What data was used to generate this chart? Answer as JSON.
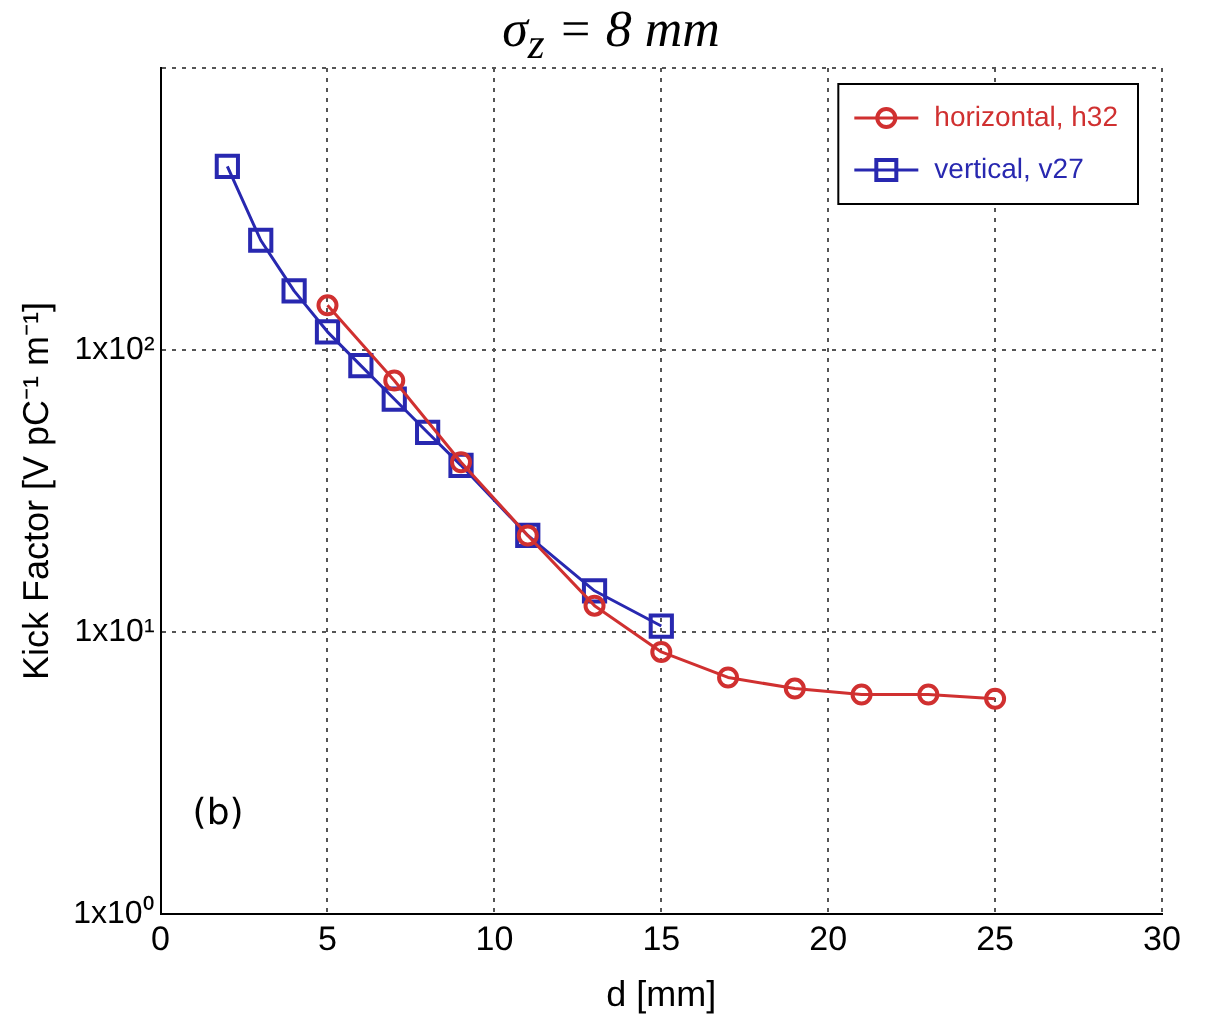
{
  "chart_data": {
    "type": "line",
    "title": "σ$_{z}$ = 8 mm",
    "xlabel": "d [mm]",
    "ylabel": "Kick Factor [V pC⁻¹ m⁻¹]",
    "annotations": [
      "(b)"
    ],
    "xlim": [
      0,
      30
    ],
    "xticks": [
      0,
      5,
      10,
      15,
      20,
      25,
      30
    ],
    "ylim": [
      1,
      1000
    ],
    "yticks": [
      {
        "value": 1,
        "label": "1x10⁰"
      },
      {
        "value": 10,
        "label": "1x10¹"
      },
      {
        "value": 100,
        "label": "1x10²"
      },
      {
        "value": 1000,
        "label": null
      }
    ],
    "log": "y",
    "grid": true,
    "legend": "top right",
    "line_style": "solid",
    "series": [
      {
        "name": "horizontal, h32",
        "color": "#d03030",
        "marker": "circle",
        "x": [
          5,
          7,
          9,
          11,
          13,
          15,
          17,
          19,
          21,
          23,
          25
        ],
        "values": [
          144,
          78,
          40,
          22,
          12.4,
          8.5,
          6.9,
          6.3,
          6.0,
          6.0,
          5.8
        ]
      },
      {
        "name": "vertical, v27",
        "color": "#2828b0",
        "marker": "square",
        "x": [
          2,
          3,
          4,
          5,
          6,
          7,
          8,
          9,
          11,
          13,
          15
        ],
        "values": [
          448,
          245,
          162,
          116,
          88,
          67,
          51,
          39,
          22,
          14,
          10.5
        ]
      }
    ]
  }
}
